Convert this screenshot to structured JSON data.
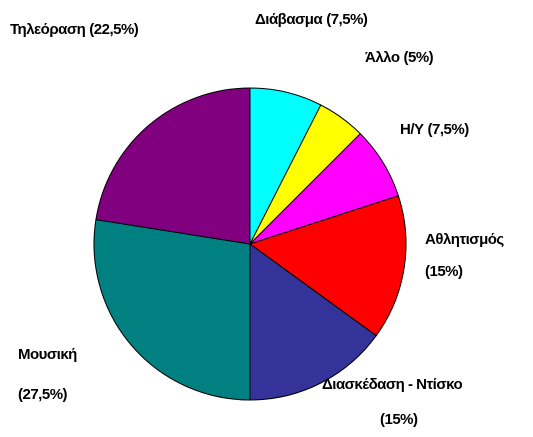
{
  "chart_data": {
    "type": "pie",
    "categories": [
      "Διάβασμα",
      "Άλλο",
      "Η/Υ",
      "Αθλητισμός",
      "Διασκέδαση - Ντίσκο",
      "Μουσική",
      "Τηλεόραση"
    ],
    "values": [
      7.5,
      5,
      7.5,
      15,
      15,
      27.5,
      22.5
    ],
    "value_labels": [
      "(7,5%)",
      "(5%)",
      "(7,5%)",
      "(15%)",
      "(15%)",
      "(27,5%)",
      "(22,5%)"
    ],
    "colors": [
      "#00ffff",
      "#ffff00",
      "#ff00ff",
      "#ff0000",
      "#333399",
      "#008080",
      "#800080"
    ]
  }
}
